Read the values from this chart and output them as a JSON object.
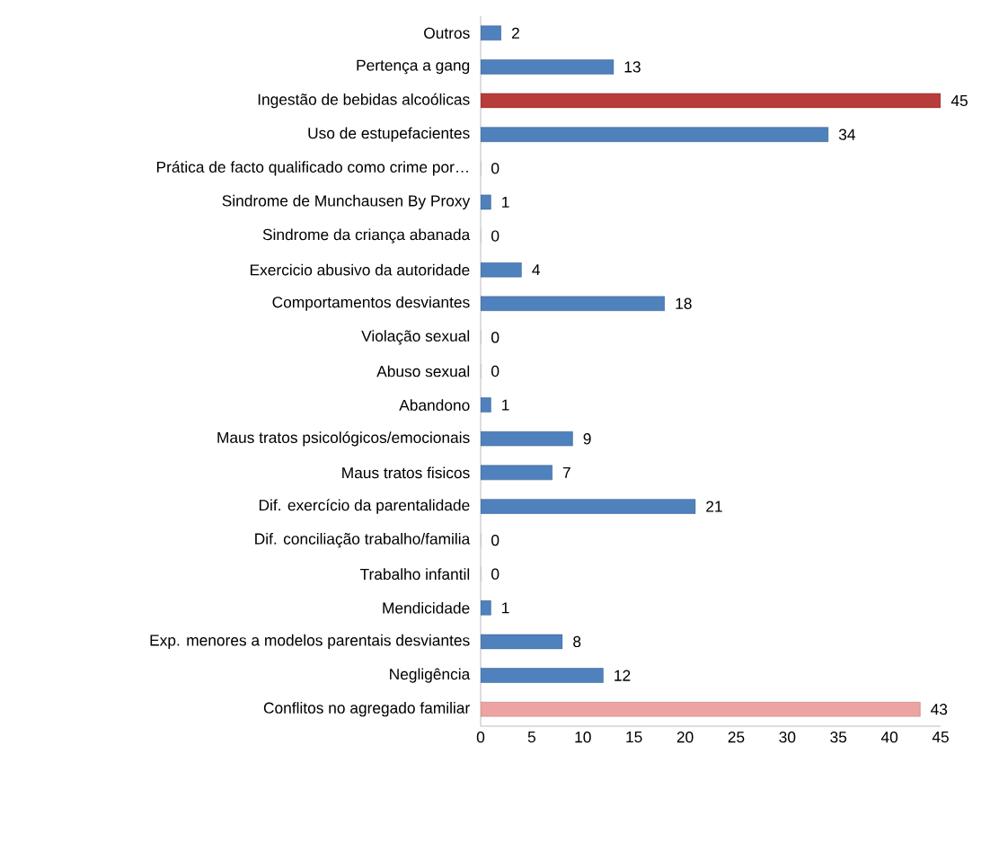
{
  "chart_data": {
    "type": "bar",
    "orientation": "horizontal",
    "categories": [
      "Outros",
      "Pertença a gang",
      "Ingestão de bebidas alcoólicas",
      "Uso de estupefacientes",
      "Prática de facto qualificado como crime por…",
      "Sindrome de Munchausen By Proxy",
      "Sindrome da criança abanada",
      "Exercicio abusivo da autoridade",
      "Comportamentos desviantes",
      "Violação sexual",
      "Abuso sexual",
      "Abandono",
      "Maus tratos psicológicos/emocionais",
      "Maus tratos fisicos",
      "Dif. exercício da parentalidade",
      "Dif. conciliação trabalho/familia",
      "Trabalho infantil",
      "Mendicidade",
      "Exp. menores a modelos parentais desviantes",
      "Negligência",
      "Conflitos no agregado familiar"
    ],
    "values": [
      2,
      13,
      45,
      34,
      0,
      1,
      0,
      4,
      18,
      0,
      0,
      1,
      9,
      7,
      21,
      0,
      0,
      1,
      8,
      12,
      43
    ],
    "colors": [
      "#4f81bd",
      "#4f81bd",
      "#b83c3a",
      "#4f81bd",
      "#4f81bd",
      "#4f81bd",
      "#4f81bd",
      "#4f81bd",
      "#4f81bd",
      "#4f81bd",
      "#4f81bd",
      "#4f81bd",
      "#4f81bd",
      "#4f81bd",
      "#4f81bd",
      "#4f81bd",
      "#4f81bd",
      "#4f81bd",
      "#4f81bd",
      "#4f81bd",
      "#eea3a3"
    ],
    "xlim": [
      0,
      45
    ],
    "xticks": [
      0,
      5,
      10,
      15,
      20,
      25,
      30,
      35,
      40,
      45
    ],
    "data_labels": true,
    "grid": false
  }
}
